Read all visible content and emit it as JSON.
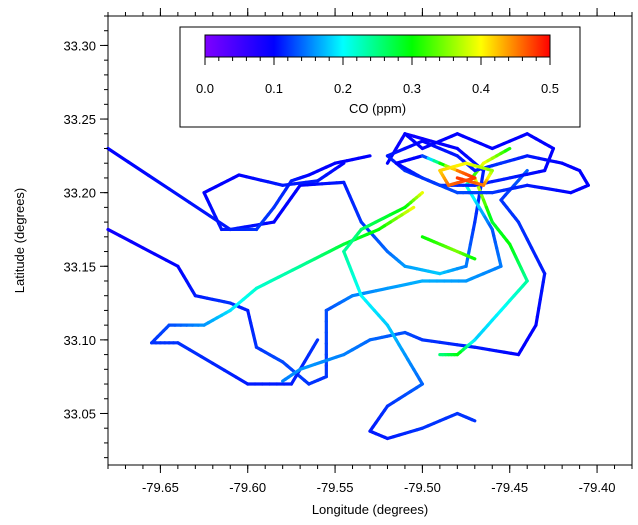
{
  "chart_data": {
    "type": "scatter",
    "title": "",
    "xlabel": "Longitude (degrees)",
    "ylabel": "Latitude (degrees)",
    "xlim": [
      -79.68,
      -79.38
    ],
    "ylim": [
      33.015,
      33.32
    ],
    "x_ticks": [
      "-79.65",
      "-79.60",
      "-79.55",
      "-79.50",
      "-79.45",
      "-79.40"
    ],
    "y_ticks": [
      "33.05",
      "33.10",
      "33.15",
      "33.20",
      "33.25",
      "33.30"
    ],
    "grid": false,
    "colorbar": {
      "label": "CO (ppm)",
      "range": [
        0.0,
        0.5
      ],
      "ticks": [
        "0.0",
        "0.1",
        "0.2",
        "0.3",
        "0.4",
        "0.5"
      ],
      "colormap": [
        "#7f00ff",
        "#0000ff",
        "#00ffff",
        "#00ff00",
        "#ffff00",
        "#ff0000"
      ],
      "placement": "top-center, inside plot"
    },
    "series": [
      {
        "points": [
          [
            -79.68,
            33.23,
            0.1
          ],
          [
            -79.61,
            33.175,
            0.11
          ],
          [
            -79.585,
            33.18,
            0.1
          ],
          [
            -79.57,
            33.205,
            0.1
          ],
          [
            -79.545,
            33.207,
            0.11
          ],
          [
            -79.535,
            33.18,
            0.12
          ],
          [
            -79.52,
            33.16,
            0.14
          ],
          [
            -79.51,
            33.15,
            0.16
          ],
          [
            -79.49,
            33.145,
            0.18
          ],
          [
            -79.475,
            33.15,
            0.15
          ],
          [
            -79.47,
            33.18,
            0.12
          ],
          [
            -79.465,
            33.215,
            0.11
          ],
          [
            -79.48,
            33.23,
            0.1
          ],
          [
            -79.51,
            33.24,
            0.09
          ],
          [
            -79.52,
            33.22,
            0.1
          ]
        ]
      },
      {
        "points": [
          [
            -79.68,
            33.175,
            0.09
          ],
          [
            -79.64,
            33.15,
            0.1
          ],
          [
            -79.63,
            33.13,
            0.11
          ],
          [
            -79.61,
            33.125,
            0.12
          ],
          [
            -79.6,
            33.12,
            0.11
          ],
          [
            -79.595,
            33.095,
            0.12
          ],
          [
            -79.58,
            33.085,
            0.13
          ],
          [
            -79.565,
            33.07,
            0.12
          ],
          [
            -79.555,
            33.075,
            0.12
          ],
          [
            -79.555,
            33.12,
            0.13
          ],
          [
            -79.54,
            33.13,
            0.15
          ],
          [
            -79.5,
            33.14,
            0.17
          ],
          [
            -79.475,
            33.14,
            0.16
          ],
          [
            -79.455,
            33.15,
            0.15
          ],
          [
            -79.46,
            33.175,
            0.13
          ],
          [
            -79.475,
            33.205,
            0.22
          ],
          [
            -79.465,
            33.22,
            0.4
          ],
          [
            -79.45,
            33.23,
            0.3
          ]
        ]
      },
      {
        "points": [
          [
            -79.505,
            33.19,
            0.4
          ],
          [
            -79.525,
            33.175,
            0.3
          ],
          [
            -79.545,
            33.165,
            0.28
          ],
          [
            -79.57,
            33.15,
            0.24
          ],
          [
            -79.595,
            33.135,
            0.22
          ],
          [
            -79.61,
            33.12,
            0.19
          ],
          [
            -79.625,
            33.11,
            0.16
          ],
          [
            -79.645,
            33.11,
            0.13
          ],
          [
            -79.655,
            33.098,
            0.12
          ],
          [
            -79.64,
            33.098,
            0.12
          ],
          [
            -79.6,
            33.07,
            0.11
          ],
          [
            -79.575,
            33.07,
            0.11
          ],
          [
            -79.56,
            33.1,
            0.12
          ]
        ]
      },
      {
        "points": [
          [
            -79.44,
            33.215,
            0.14
          ],
          [
            -79.455,
            33.195,
            0.12
          ],
          [
            -79.445,
            33.18,
            0.12
          ],
          [
            -79.43,
            33.145,
            0.11
          ],
          [
            -79.435,
            33.11,
            0.1
          ],
          [
            -79.445,
            33.09,
            0.1
          ],
          [
            -79.47,
            33.095,
            0.11
          ],
          [
            -79.5,
            33.1,
            0.12
          ],
          [
            -79.51,
            33.105,
            0.13
          ],
          [
            -79.53,
            33.1,
            0.14
          ],
          [
            -79.545,
            33.09,
            0.15
          ],
          [
            -79.57,
            33.08,
            0.16
          ],
          [
            -79.58,
            33.072,
            0.15
          ]
        ]
      },
      {
        "points": [
          [
            -79.5,
            33.2,
            0.4
          ],
          [
            -79.51,
            33.19,
            0.3
          ],
          [
            -79.535,
            33.175,
            0.26
          ],
          [
            -79.545,
            33.16,
            0.24
          ],
          [
            -79.535,
            33.13,
            0.2
          ],
          [
            -79.52,
            33.11,
            0.18
          ],
          [
            -79.51,
            33.09,
            0.16
          ],
          [
            -79.5,
            33.07,
            0.14
          ],
          [
            -79.52,
            33.055,
            0.12
          ],
          [
            -79.53,
            33.038,
            0.11
          ],
          [
            -79.52,
            33.033,
            0.11
          ],
          [
            -79.5,
            33.04,
            0.12
          ],
          [
            -79.48,
            33.05,
            0.12
          ],
          [
            -79.47,
            33.045,
            0.12
          ]
        ]
      },
      {
        "points": [
          [
            -79.47,
            33.21,
            0.4
          ],
          [
            -79.46,
            33.18,
            0.28
          ],
          [
            -79.45,
            33.165,
            0.3
          ],
          [
            -79.44,
            33.14,
            0.24
          ],
          [
            -79.455,
            33.12,
            0.2
          ],
          [
            -79.47,
            33.1,
            0.18
          ],
          [
            -79.48,
            33.09,
            0.3
          ],
          [
            -79.49,
            33.09,
            0.25
          ]
        ]
      },
      {
        "points": [
          [
            -79.53,
            33.225,
            0.1
          ],
          [
            -79.55,
            33.22,
            0.1
          ],
          [
            -79.565,
            33.212,
            0.1
          ],
          [
            -79.575,
            33.208,
            0.11
          ],
          [
            -79.585,
            33.19,
            0.12
          ],
          [
            -79.595,
            33.175,
            0.12
          ],
          [
            -79.615,
            33.175,
            0.11
          ],
          [
            -79.625,
            33.2,
            0.1
          ],
          [
            -79.605,
            33.212,
            0.1
          ],
          [
            -79.58,
            33.205,
            0.11
          ],
          [
            -79.56,
            33.208,
            0.11
          ],
          [
            -79.545,
            33.22,
            0.1
          ]
        ]
      },
      {
        "points": [
          [
            -79.5,
            33.17,
            0.3
          ],
          [
            -79.49,
            33.165,
            0.32
          ],
          [
            -79.48,
            33.16,
            0.35
          ],
          [
            -79.47,
            33.155,
            0.3
          ]
        ]
      },
      {
        "points": [
          [
            -79.51,
            33.24,
            0.1
          ],
          [
            -79.5,
            33.23,
            0.1
          ],
          [
            -79.48,
            33.24,
            0.1
          ],
          [
            -79.46,
            33.23,
            0.1
          ],
          [
            -79.44,
            33.24,
            0.1
          ],
          [
            -79.425,
            33.23,
            0.1
          ],
          [
            -79.43,
            33.215,
            0.1
          ],
          [
            -79.45,
            33.21,
            0.11
          ],
          [
            -79.47,
            33.205,
            0.11
          ],
          [
            -79.49,
            33.205,
            0.12
          ],
          [
            -79.51,
            33.215,
            0.12
          ],
          [
            -79.52,
            33.225,
            0.11
          ],
          [
            -79.5,
            33.235,
            0.1
          ],
          [
            -79.48,
            33.225,
            0.11
          ],
          [
            -79.47,
            33.215,
            0.11
          ],
          [
            -79.455,
            33.22,
            0.12
          ],
          [
            -79.44,
            33.225,
            0.11
          ],
          [
            -79.42,
            33.22,
            0.1
          ],
          [
            -79.41,
            33.215,
            0.1
          ],
          [
            -79.405,
            33.205,
            0.1
          ],
          [
            -79.415,
            33.2,
            0.1
          ],
          [
            -79.44,
            33.205,
            0.11
          ],
          [
            -79.46,
            33.2,
            0.12
          ],
          [
            -79.48,
            33.2,
            0.13
          ],
          [
            -79.5,
            33.21,
            0.12
          ],
          [
            -79.515,
            33.22,
            0.1
          ],
          [
            -79.5,
            33.225,
            0.1
          ],
          [
            -79.48,
            33.215,
            0.45
          ],
          [
            -79.47,
            33.21,
            0.48
          ],
          [
            -79.485,
            33.205,
            0.46
          ],
          [
            -79.49,
            33.215,
            0.42
          ],
          [
            -79.475,
            33.22,
            0.4
          ],
          [
            -79.46,
            33.215,
            0.35
          ],
          [
            -79.465,
            33.205,
            0.45
          ],
          [
            -79.48,
            33.21,
            0.48
          ]
        ]
      }
    ]
  }
}
